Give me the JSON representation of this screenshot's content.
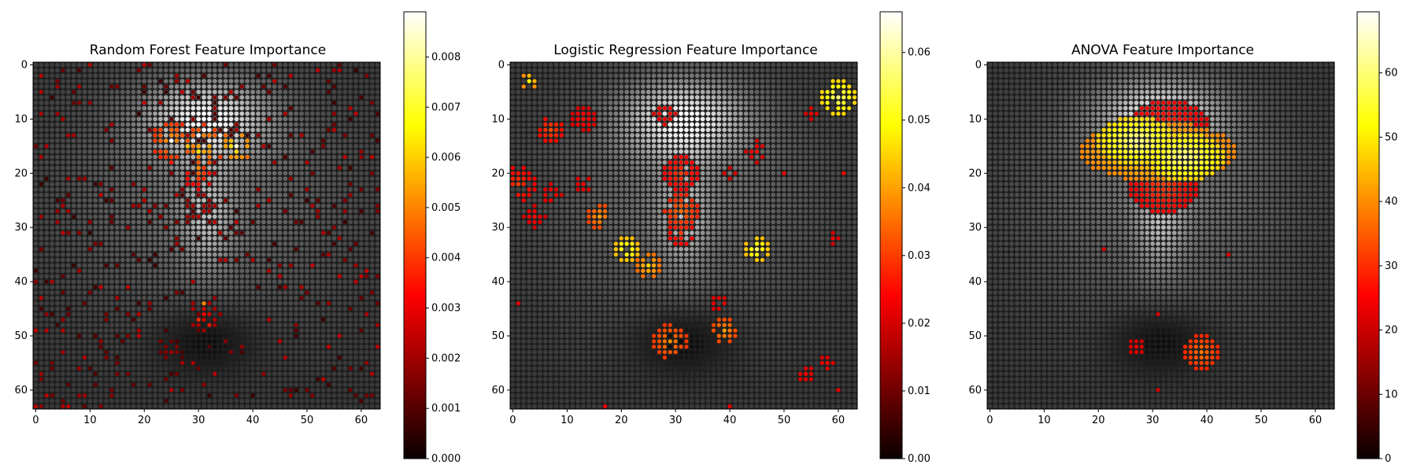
{
  "figure": {
    "background": "#ffffff"
  },
  "chart_data": [
    {
      "type": "heatmap",
      "title": "Random Forest Feature Importance",
      "xlabel": "",
      "ylabel": "",
      "grid_size": [
        64,
        64
      ],
      "xlim": [
        0,
        63
      ],
      "ylim": [
        63,
        0
      ],
      "xticks": [
        "0",
        "10",
        "20",
        "30",
        "40",
        "50",
        "60"
      ],
      "yticks": [
        "0",
        "10",
        "20",
        "30",
        "40",
        "50",
        "60"
      ],
      "colormap": "hot",
      "colorbar": {
        "min": 0,
        "max": 0.0089,
        "ticks": [
          "0.000",
          "0.001",
          "0.002",
          "0.003",
          "0.004",
          "0.005",
          "0.006",
          "0.007",
          "0.008"
        ],
        "tick_values": [
          0,
          0.001,
          0.002,
          0.003,
          0.004,
          0.005,
          0.006,
          0.007,
          0.008
        ]
      },
      "overlay": "grayscale face image shown beneath importance dots",
      "hotspots": [
        {
          "x": 25,
          "y": 14,
          "r": 4,
          "value": 0.0055
        },
        {
          "x": 31,
          "y": 15,
          "r": 4,
          "value": 0.006
        },
        {
          "x": 37,
          "y": 15,
          "r": 3,
          "value": 0.007
        },
        {
          "x": 30,
          "y": 20,
          "r": 3,
          "value": 0.0045
        },
        {
          "x": 30,
          "y": 27,
          "r": 3,
          "value": 0.0025
        },
        {
          "x": 31,
          "y": 46,
          "r": 3,
          "value": 0.003
        },
        {
          "x": 25,
          "y": 53,
          "r": 2,
          "value": 0.002
        }
      ],
      "hot_cells": [
        {
          "x": 25,
          "y": 14,
          "value": 0.0089
        },
        {
          "x": 37,
          "y": 15,
          "value": 0.0086
        },
        {
          "x": 30,
          "y": 16,
          "value": 0.0062
        },
        {
          "x": 28,
          "y": 15,
          "value": 0.0058
        },
        {
          "x": 30,
          "y": 19,
          "value": 0.005
        },
        {
          "x": 31,
          "y": 44,
          "value": 0.005
        },
        {
          "x": 30,
          "y": 47,
          "value": 0.0038
        },
        {
          "x": 32,
          "y": 48,
          "value": 0.0035
        }
      ],
      "noise": {
        "threshold": 0.9,
        "value_range": [
          0.0006,
          0.0025
        ]
      }
    },
    {
      "type": "heatmap",
      "title": "Logistic Regression Feature Importance",
      "xlabel": "",
      "ylabel": "",
      "grid_size": [
        64,
        64
      ],
      "xlim": [
        0,
        63
      ],
      "ylim": [
        63,
        0
      ],
      "xticks": [
        "0",
        "10",
        "20",
        "30",
        "40",
        "50",
        "60"
      ],
      "yticks": [
        "0",
        "10",
        "20",
        "30",
        "40",
        "50",
        "60"
      ],
      "colormap": "hot",
      "colorbar": {
        "min": 0,
        "max": 0.066,
        "ticks": [
          "0.00",
          "0.01",
          "0.02",
          "0.03",
          "0.04",
          "0.05",
          "0.06"
        ],
        "tick_values": [
          0,
          0.01,
          0.02,
          0.03,
          0.04,
          0.05,
          0.06
        ]
      },
      "overlay": "grayscale face image shown beneath importance dots",
      "threshold": 0.02,
      "hotspots": [
        {
          "x": 31,
          "y": 20,
          "r": 3,
          "value": 0.03
        },
        {
          "x": 31,
          "y": 27,
          "r": 3,
          "value": 0.035
        },
        {
          "x": 31,
          "y": 31,
          "r": 2,
          "value": 0.03
        },
        {
          "x": 21,
          "y": 34,
          "r": 2,
          "value": 0.055
        },
        {
          "x": 25,
          "y": 37,
          "r": 2,
          "value": 0.045
        },
        {
          "x": 45,
          "y": 34,
          "r": 2,
          "value": 0.055
        },
        {
          "x": 60,
          "y": 6,
          "r": 3,
          "value": 0.058
        },
        {
          "x": 3,
          "y": 3,
          "r": 1,
          "value": 0.05
        },
        {
          "x": 7,
          "y": 12,
          "r": 2,
          "value": 0.032
        },
        {
          "x": 16,
          "y": 28,
          "r": 2,
          "value": 0.04
        },
        {
          "x": 1,
          "y": 22,
          "r": 3,
          "value": 0.03
        },
        {
          "x": 29,
          "y": 51,
          "r": 3,
          "value": 0.038
        },
        {
          "x": 39,
          "y": 49,
          "r": 2,
          "value": 0.04
        },
        {
          "x": 13,
          "y": 10,
          "r": 2,
          "value": 0.026
        },
        {
          "x": 38,
          "y": 44,
          "r": 2,
          "value": 0.024
        },
        {
          "x": 54,
          "y": 57,
          "r": 2,
          "value": 0.024
        },
        {
          "x": 58,
          "y": 55,
          "r": 2,
          "value": 0.024
        },
        {
          "x": 28,
          "y": 9,
          "r": 2,
          "value": 0.025
        },
        {
          "x": 55,
          "y": 9,
          "r": 2,
          "value": 0.023
        },
        {
          "x": 44,
          "y": 9,
          "r": 1,
          "value": 0.023
        },
        {
          "x": 45,
          "y": 16,
          "r": 2,
          "value": 0.025
        },
        {
          "x": 40,
          "y": 20,
          "r": 1,
          "value": 0.024
        },
        {
          "x": 7,
          "y": 24,
          "r": 2,
          "value": 0.025
        },
        {
          "x": 1,
          "y": 44,
          "r": 1,
          "value": 0.022
        },
        {
          "x": 59,
          "y": 32,
          "r": 1,
          "value": 0.024
        },
        {
          "x": 13,
          "y": 22,
          "r": 2,
          "value": 0.024
        },
        {
          "x": 4,
          "y": 28,
          "r": 2,
          "value": 0.025
        },
        {
          "x": 61,
          "y": 20,
          "r": 1,
          "value": 0.023
        },
        {
          "x": 50,
          "y": 20,
          "r": 1,
          "value": 0.022
        },
        {
          "x": 17,
          "y": 63,
          "r": 1,
          "value": 0.023
        },
        {
          "x": 40,
          "y": 63,
          "r": 1,
          "value": 0.022
        },
        {
          "x": 60,
          "y": 60,
          "r": 1,
          "value": 0.022
        }
      ]
    },
    {
      "type": "heatmap",
      "title": "ANOVA Feature Importance",
      "xlabel": "",
      "ylabel": "",
      "grid_size": [
        64,
        64
      ],
      "xlim": [
        0,
        63
      ],
      "ylim": [
        63,
        0
      ],
      "xticks": [
        "0",
        "10",
        "20",
        "30",
        "40",
        "50",
        "60"
      ],
      "yticks": [
        "0",
        "10",
        "20",
        "30",
        "40",
        "50",
        "60"
      ],
      "colormap": "hot",
      "colorbar": {
        "min": 0,
        "max": 69.5,
        "ticks": [
          "0",
          "10",
          "20",
          "30",
          "40",
          "50",
          "60"
        ],
        "tick_values": [
          0,
          10,
          20,
          30,
          40,
          50,
          60
        ]
      },
      "overlay": "grayscale face image shown beneath importance dots",
      "threshold": 20,
      "hotspots": [
        {
          "x": 31,
          "y": 16,
          "rx": 14,
          "ry": 5,
          "value": 52
        },
        {
          "x": 27,
          "y": 14,
          "rx": 7,
          "ry": 4,
          "value": 62
        },
        {
          "x": 36,
          "y": 17,
          "rx": 7,
          "ry": 4,
          "value": 62
        },
        {
          "x": 33,
          "y": 11,
          "rx": 7,
          "ry": 4,
          "value": 30
        },
        {
          "x": 32,
          "y": 22,
          "rx": 6,
          "ry": 5,
          "value": 32
        },
        {
          "x": 39,
          "y": 53,
          "rx": 3,
          "ry": 3,
          "value": 38
        },
        {
          "x": 27,
          "y": 52,
          "rx": 2,
          "ry": 2,
          "value": 24
        },
        {
          "x": 21,
          "y": 34,
          "rx": 1,
          "ry": 1,
          "value": 22
        },
        {
          "x": 44,
          "y": 35,
          "rx": 2,
          "ry": 2,
          "value": 22
        },
        {
          "x": 31,
          "y": 46,
          "rx": 1,
          "ry": 1,
          "value": 22
        },
        {
          "x": 31,
          "y": 60,
          "rx": 3,
          "ry": 1,
          "value": 21
        }
      ]
    }
  ]
}
